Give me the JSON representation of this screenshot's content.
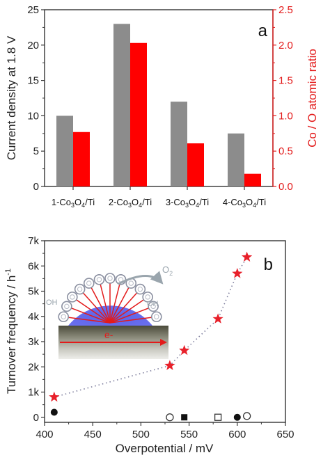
{
  "colors": {
    "gray_bar": "#8c8c8c",
    "red": "#ff0000",
    "red_axis": "#e31b1b",
    "star": "#e8202a",
    "dot_line": "#7a7a9a"
  },
  "chart_data": [
    {
      "type": "bar",
      "panel": "a",
      "categories": [
        {
          "prefix": "1-Co",
          "sub1": "3",
          "mid": "O",
          "sub2": "4",
          "suffix": "/Ti"
        },
        {
          "prefix": "2-Co",
          "sub1": "3",
          "mid": "O",
          "sub2": "4",
          "suffix": "/Ti"
        },
        {
          "prefix": "3-Co",
          "sub1": "3",
          "mid": "O",
          "sub2": "4",
          "suffix": "/Ti"
        },
        {
          "prefix": "4-Co",
          "sub1": "3",
          "mid": "O",
          "sub2": "4",
          "suffix": "/Ti"
        }
      ],
      "series": [
        {
          "values": [
            10,
            23,
            12,
            7.5
          ],
          "axis": "left",
          "color": "#8c8c8c"
        },
        {
          "values": [
            0.77,
            2.03,
            0.61,
            0.18
          ],
          "axis": "right",
          "color": "#ff0000"
        }
      ],
      "ylabel": "Current density  at 1.8 V",
      "ylim": [
        0,
        25
      ],
      "yticks": [
        "0",
        "5",
        "10",
        "15",
        "20",
        "25"
      ],
      "y2label": "Co / O atomic ratio",
      "y2lim": [
        0,
        2.5
      ],
      "y2ticks": [
        "0.0",
        "0.5",
        "1.0",
        "1.5",
        "2.0",
        "2.5"
      ]
    },
    {
      "type": "scatter",
      "panel": "b",
      "series": [
        {
          "marker": "star",
          "x": [
            410,
            530,
            545,
            580,
            600,
            610
          ],
          "y": [
            800,
            2050,
            2650,
            3900,
            5700,
            6350
          ]
        },
        {
          "marker": "filled-circle",
          "x": [
            410,
            600
          ],
          "y": [
            200,
            0
          ]
        },
        {
          "marker": "open-circle",
          "x": [
            530,
            610
          ],
          "y": [
            0,
            50
          ]
        },
        {
          "marker": "filled-square",
          "x": [
            545
          ],
          "y": [
            0
          ]
        },
        {
          "marker": "open-square",
          "x": [
            580
          ],
          "y": [
            0
          ]
        }
      ],
      "xlabel": "Overpotential / mV",
      "ylabel": "Turnover frequency / h",
      "ylabel_sup": "-1",
      "xlim": [
        400,
        650
      ],
      "ylim": [
        -200,
        7000
      ],
      "xticks": [
        "400",
        "450",
        "500",
        "550",
        "600",
        "650"
      ],
      "yticks": [
        "0",
        "1k",
        "2k",
        "3k",
        "4k",
        "5k",
        "6k",
        "7k"
      ],
      "inset": {
        "electron_label": "e-",
        "o2_label": "O",
        "o2_sub": "2",
        "oh_label": "OH"
      }
    }
  ]
}
